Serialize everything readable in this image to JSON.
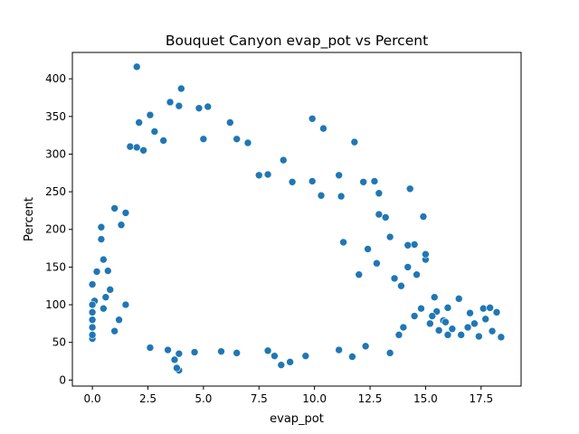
{
  "chart_data": {
    "type": "scatter",
    "title": "Bouquet Canyon evap_pot vs Percent",
    "xlabel": "evap_pot",
    "ylabel": "Percent",
    "xlim": [
      -0.9,
      19.3
    ],
    "ylim": [
      -8,
      435
    ],
    "xticks": [
      0.0,
      2.5,
      5.0,
      7.5,
      10.0,
      12.5,
      15.0,
      17.5
    ],
    "xtick_labels": [
      "0.0",
      "2.5",
      "5.0",
      "7.5",
      "10.0",
      "12.5",
      "15.0",
      "17.5"
    ],
    "yticks": [
      0,
      50,
      100,
      150,
      200,
      250,
      300,
      350,
      400
    ],
    "ytick_labels": [
      "0",
      "50",
      "100",
      "150",
      "200",
      "250",
      "300",
      "350",
      "400"
    ],
    "grid": false,
    "legend": false,
    "marker_color": "#1f77b4",
    "marker_edge": "#ffffff",
    "points": [
      [
        2.0,
        416
      ],
      [
        4.0,
        387
      ],
      [
        3.5,
        369
      ],
      [
        5.2,
        363
      ],
      [
        4.8,
        361
      ],
      [
        3.9,
        364
      ],
      [
        9.9,
        347
      ],
      [
        10.4,
        334
      ],
      [
        2.6,
        352
      ],
      [
        6.2,
        342
      ],
      [
        2.1,
        342
      ],
      [
        11.8,
        316
      ],
      [
        2.8,
        330
      ],
      [
        3.2,
        318
      ],
      [
        1.7,
        310
      ],
      [
        2.0,
        309
      ],
      [
        2.3,
        305
      ],
      [
        7.0,
        315
      ],
      [
        6.5,
        320
      ],
      [
        5.0,
        320
      ],
      [
        7.5,
        272
      ],
      [
        7.9,
        273
      ],
      [
        8.6,
        292
      ],
      [
        9.0,
        263
      ],
      [
        9.9,
        264
      ],
      [
        10.3,
        245
      ],
      [
        11.1,
        272
      ],
      [
        11.2,
        244
      ],
      [
        12.2,
        263
      ],
      [
        12.7,
        264
      ],
      [
        12.9,
        248
      ],
      [
        14.3,
        254
      ],
      [
        14.9,
        217
      ],
      [
        15.0,
        160
      ],
      [
        15.0,
        167
      ],
      [
        13.2,
        216
      ],
      [
        13.4,
        190
      ],
      [
        12.9,
        220
      ],
      [
        12.4,
        174
      ],
      [
        11.3,
        183
      ],
      [
        14.5,
        180
      ],
      [
        14.2,
        179
      ],
      [
        16.5,
        108
      ],
      [
        17.0,
        89
      ],
      [
        16.0,
        96
      ],
      [
        17.2,
        75
      ],
      [
        17.6,
        95
      ],
      [
        17.9,
        96
      ],
      [
        17.7,
        81
      ],
      [
        18.2,
        90
      ],
      [
        18.4,
        57
      ],
      [
        18.0,
        65
      ],
      [
        17.4,
        58
      ],
      [
        16.9,
        70
      ],
      [
        16.6,
        60
      ],
      [
        16.2,
        68
      ],
      [
        15.8,
        79
      ],
      [
        15.5,
        91
      ],
      [
        15.9,
        77
      ],
      [
        16.0,
        60
      ],
      [
        15.6,
        66
      ],
      [
        15.3,
        85
      ],
      [
        0.0,
        127
      ],
      [
        0.1,
        105
      ],
      [
        0.2,
        144
      ],
      [
        0.4,
        203
      ],
      [
        0.4,
        187
      ],
      [
        0.5,
        160
      ],
      [
        1.0,
        228
      ],
      [
        1.3,
        206
      ],
      [
        1.5,
        222
      ],
      [
        0.7,
        145
      ],
      [
        3.9,
        13
      ],
      [
        3.8,
        16
      ],
      [
        3.7,
        27
      ],
      [
        3.9,
        35
      ],
      [
        8.2,
        32
      ],
      [
        8.5,
        20
      ],
      [
        8.9,
        24
      ],
      [
        9.6,
        32
      ],
      [
        11.7,
        31
      ],
      [
        12.3,
        45
      ],
      [
        11.1,
        40
      ],
      [
        13.4,
        36
      ],
      [
        6.5,
        36
      ],
      [
        5.8,
        38
      ],
      [
        4.6,
        37
      ],
      [
        3.4,
        40
      ],
      [
        2.6,
        43
      ],
      [
        7.9,
        39
      ],
      [
        0.0,
        55
      ],
      [
        0.0,
        60
      ],
      [
        0.0,
        70
      ],
      [
        0.0,
        80
      ],
      [
        0.0,
        90
      ],
      [
        0.0,
        100
      ],
      [
        0.5,
        95
      ],
      [
        0.6,
        110
      ],
      [
        0.8,
        120
      ],
      [
        1.0,
        65
      ],
      [
        1.2,
        80
      ],
      [
        1.5,
        100
      ],
      [
        14.0,
        70
      ],
      [
        14.5,
        85
      ],
      [
        13.8,
        60
      ],
      [
        14.8,
        95
      ],
      [
        15.2,
        75
      ],
      [
        15.4,
        110
      ],
      [
        13.9,
        125
      ],
      [
        14.6,
        140
      ],
      [
        14.2,
        150
      ],
      [
        13.6,
        135
      ],
      [
        12.8,
        155
      ],
      [
        12.0,
        140
      ]
    ]
  }
}
